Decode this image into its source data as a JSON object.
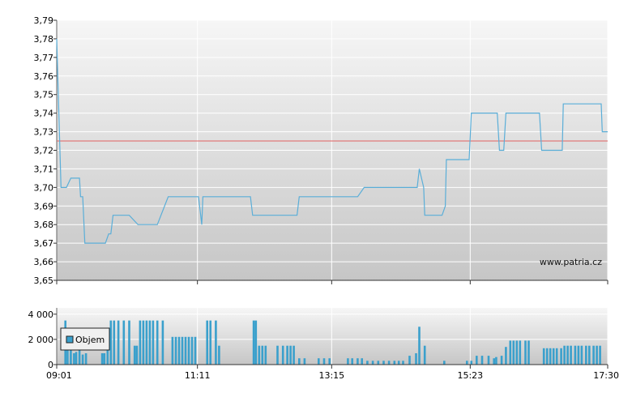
{
  "watermark": "www.patria.cz",
  "colors": {
    "price_line": "#5aaed8",
    "reference_line": "#e06060",
    "volume_bar": "#3aa0cc",
    "plot_bg_top": "#f6f6f6",
    "plot_bg_bottom": "#c6c6c6",
    "grid": "#ffffff"
  },
  "chart_data": [
    {
      "type": "line",
      "name": "price",
      "ylim": [
        3.65,
        3.79
      ],
      "y_ticks": [
        "3,65",
        "3,66",
        "3,67",
        "3,68",
        "3,69",
        "3,70",
        "3,71",
        "3,72",
        "3,73",
        "3,74",
        "3,75",
        "3,76",
        "3,77",
        "3,78",
        "3,79"
      ],
      "x_ticks": [
        "09:01",
        "11:11",
        "13:15",
        "15:23",
        "17:30"
      ],
      "reference_value": 3.725,
      "points": [
        [
          "09:01",
          3.78
        ],
        [
          "09:02",
          3.76
        ],
        [
          "09:05",
          3.7
        ],
        [
          "09:10",
          3.7
        ],
        [
          "09:14",
          3.705
        ],
        [
          "09:22",
          3.705
        ],
        [
          "09:23",
          3.695
        ],
        [
          "09:25",
          3.695
        ],
        [
          "09:27",
          3.67
        ],
        [
          "09:46",
          3.67
        ],
        [
          "09:49",
          3.675
        ],
        [
          "09:51",
          3.675
        ],
        [
          "09:53",
          3.685
        ],
        [
          "10:08",
          3.685
        ],
        [
          "10:16",
          3.68
        ],
        [
          "10:34",
          3.68
        ],
        [
          "10:44",
          3.695
        ],
        [
          "11:12",
          3.695
        ],
        [
          "11:15",
          3.68
        ],
        [
          "11:16",
          3.695
        ],
        [
          "12:00",
          3.695
        ],
        [
          "12:02",
          3.685
        ],
        [
          "12:43",
          3.685
        ],
        [
          "12:45",
          3.695
        ],
        [
          "13:39",
          3.695
        ],
        [
          "13:45",
          3.7
        ],
        [
          "14:34",
          3.7
        ],
        [
          "14:36",
          3.71
        ],
        [
          "14:40",
          3.7
        ],
        [
          "14:41",
          3.685
        ],
        [
          "14:57",
          3.685
        ],
        [
          "15:00",
          3.69
        ],
        [
          "15:01",
          3.715
        ],
        [
          "15:22",
          3.715
        ],
        [
          "15:24",
          3.74
        ],
        [
          "15:48",
          3.74
        ],
        [
          "15:50",
          3.72
        ],
        [
          "15:54",
          3.72
        ],
        [
          "15:56",
          3.74
        ],
        [
          "16:27",
          3.74
        ],
        [
          "16:29",
          3.72
        ],
        [
          "16:48",
          3.72
        ],
        [
          "16:49",
          3.745
        ],
        [
          "17:24",
          3.745
        ],
        [
          "17:25",
          3.73
        ],
        [
          "17:30",
          3.73
        ]
      ]
    },
    {
      "type": "bar",
      "name": "volume",
      "ylim": [
        0,
        4500
      ],
      "y_ticks": [
        "0",
        "2 000",
        "4 000"
      ],
      "x_ticks": [
        "09:01",
        "11:11",
        "13:15",
        "15:23",
        "17:30"
      ],
      "legend": "Objem",
      "legend_placement": "left",
      "bars": [
        [
          "09:09",
          3500
        ],
        [
          "09:11",
          1500
        ],
        [
          "09:14",
          1500
        ],
        [
          "09:17",
          900
        ],
        [
          "09:19",
          1000
        ],
        [
          "09:22",
          1900
        ],
        [
          "09:25",
          800
        ],
        [
          "09:28",
          900
        ],
        [
          "09:43",
          900
        ],
        [
          "09:45",
          900
        ],
        [
          "09:48",
          2000
        ],
        [
          "09:51",
          3500
        ],
        [
          "09:54",
          3500
        ],
        [
          "09:58",
          3500
        ],
        [
          "10:03",
          3500
        ],
        [
          "10:08",
          3500
        ],
        [
          "10:13",
          1500
        ],
        [
          "10:15",
          1500
        ],
        [
          "10:18",
          3500
        ],
        [
          "10:21",
          3500
        ],
        [
          "10:24",
          3500
        ],
        [
          "10:27",
          3500
        ],
        [
          "10:30",
          3500
        ],
        [
          "10:34",
          3500
        ],
        [
          "10:39",
          3500
        ],
        [
          "10:48",
          2200
        ],
        [
          "10:51",
          2200
        ],
        [
          "10:54",
          2200
        ],
        [
          "10:57",
          2200
        ],
        [
          "11:00",
          2200
        ],
        [
          "11:03",
          2200
        ],
        [
          "11:06",
          2200
        ],
        [
          "11:09",
          2200
        ],
        [
          "11:20",
          3500
        ],
        [
          "11:23",
          3500
        ],
        [
          "11:28",
          3500
        ],
        [
          "11:31",
          1500
        ],
        [
          "12:03",
          3500
        ],
        [
          "12:05",
          3500
        ],
        [
          "12:08",
          1500
        ],
        [
          "12:11",
          1500
        ],
        [
          "12:14",
          1500
        ],
        [
          "12:25",
          1500
        ],
        [
          "12:30",
          1500
        ],
        [
          "12:34",
          1500
        ],
        [
          "12:37",
          1500
        ],
        [
          "12:40",
          1500
        ],
        [
          "12:45",
          500
        ],
        [
          "12:50",
          500
        ],
        [
          "13:03",
          500
        ],
        [
          "13:08",
          500
        ],
        [
          "13:13",
          500
        ],
        [
          "13:30",
          500
        ],
        [
          "13:34",
          500
        ],
        [
          "13:39",
          500
        ],
        [
          "13:43",
          500
        ],
        [
          "13:48",
          300
        ],
        [
          "13:53",
          300
        ],
        [
          "13:58",
          300
        ],
        [
          "14:03",
          300
        ],
        [
          "14:08",
          300
        ],
        [
          "14:13",
          300
        ],
        [
          "14:17",
          300
        ],
        [
          "14:21",
          300
        ],
        [
          "14:27",
          700
        ],
        [
          "14:33",
          900
        ],
        [
          "14:36",
          3000
        ],
        [
          "14:41",
          1500
        ],
        [
          "14:59",
          300
        ],
        [
          "15:20",
          300
        ],
        [
          "15:24",
          300
        ],
        [
          "15:29",
          700
        ],
        [
          "15:34",
          700
        ],
        [
          "15:40",
          700
        ],
        [
          "15:45",
          500
        ],
        [
          "15:47",
          600
        ],
        [
          "15:52",
          700
        ],
        [
          "15:56",
          1400
        ],
        [
          "16:00",
          1900
        ],
        [
          "16:03",
          1900
        ],
        [
          "16:06",
          1900
        ],
        [
          "16:09",
          1900
        ],
        [
          "16:14",
          1900
        ],
        [
          "16:17",
          1900
        ],
        [
          "16:31",
          1300
        ],
        [
          "16:34",
          1300
        ],
        [
          "16:37",
          1300
        ],
        [
          "16:40",
          1300
        ],
        [
          "16:43",
          1300
        ],
        [
          "16:47",
          1300
        ],
        [
          "16:50",
          1500
        ],
        [
          "16:53",
          1500
        ],
        [
          "16:56",
          1500
        ],
        [
          "17:00",
          1500
        ],
        [
          "17:03",
          1500
        ],
        [
          "17:06",
          1500
        ],
        [
          "17:10",
          1500
        ],
        [
          "17:13",
          1500
        ],
        [
          "17:17",
          1500
        ],
        [
          "17:20",
          1500
        ],
        [
          "17:23",
          1500
        ]
      ]
    }
  ]
}
